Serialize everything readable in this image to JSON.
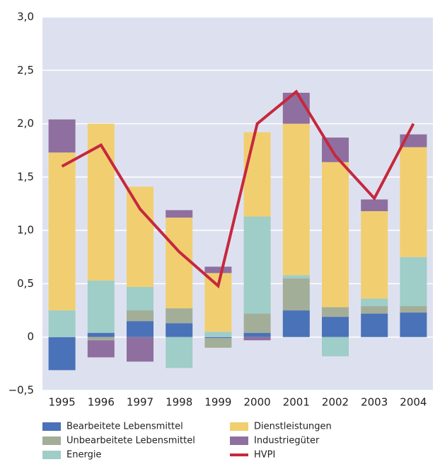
{
  "chart_data": {
    "type": "bar",
    "categories": [
      "1995",
      "1996",
      "1997",
      "1998",
      "1999",
      "2000",
      "2001",
      "2002",
      "2003",
      "2004"
    ],
    "series": [
      {
        "name": "Bearbeitete Lebensmittel",
        "color": "#4a72b8",
        "values": [
          -0.31,
          0.04,
          0.15,
          0.13,
          -0.01,
          0.04,
          0.25,
          0.19,
          0.22,
          0.23
        ]
      },
      {
        "name": "Unbearbeitete Lebensmittel",
        "color": "#a3ae98",
        "values": [
          0,
          -0.03,
          0.1,
          0.14,
          -0.09,
          0.18,
          0.3,
          0.09,
          0.07,
          0.06
        ]
      },
      {
        "name": "Energie",
        "color": "#9fcdc7",
        "values": [
          0.25,
          0.49,
          0.22,
          -0.29,
          0.05,
          0.91,
          0.03,
          -0.18,
          0.07,
          0.46
        ]
      },
      {
        "name": "Dienstleistungen",
        "color": "#f1cf70",
        "values": [
          1.48,
          1.47,
          0.94,
          0.85,
          0.55,
          0.79,
          1.42,
          1.36,
          0.82,
          1.03
        ]
      },
      {
        "name": "Industriegüter",
        "color": "#8f6f9f",
        "values": [
          0.31,
          -0.16,
          -0.23,
          0.07,
          0.06,
          -0.03,
          0.29,
          0.23,
          0.11,
          0.12
        ]
      },
      {
        "name": "HVPI",
        "type": "line",
        "color": "#c6283d",
        "values": [
          1.6,
          1.8,
          1.2,
          0.8,
          0.48,
          2.0,
          2.3,
          1.7,
          1.3,
          2.0
        ]
      }
    ],
    "ylim": [
      -0.5,
      3.0
    ],
    "yticks": [
      {
        "value": -0.5,
        "label": "−0,5"
      },
      0,
      {
        "value": 0.5,
        "label": "0,5"
      },
      {
        "value": 1,
        "label": "1,0"
      },
      {
        "value": 1.5,
        "label": "1,5"
      },
      {
        "value": 2,
        "label": "2,0"
      },
      {
        "value": 2.5,
        "label": "2,5"
      },
      {
        "value": 3,
        "label": "3,0"
      }
    ],
    "grid": true
  }
}
